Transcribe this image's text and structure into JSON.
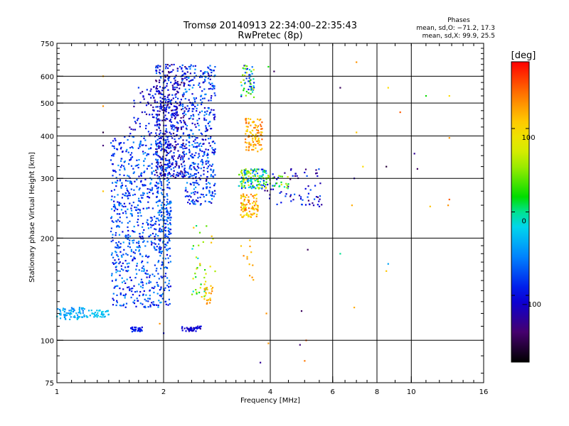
{
  "chart_data": {
    "type": "scatter",
    "title": "Tromsø 20140913 22:34:00–22:35:43",
    "subtitle": "RwPretec (8p)",
    "xlabel": "Frequency [MHz]",
    "ylabel": "Stationary phase Virtual Height [km]",
    "x_scale": "log2",
    "y_scale": "log",
    "xlim": [
      1,
      16
    ],
    "ylim": [
      75,
      750
    ],
    "x_ticks": [
      1,
      2,
      4,
      6,
      8,
      10,
      16
    ],
    "x_tick_labels": [
      "1",
      "2",
      "4",
      "6",
      "8",
      "10",
      "16"
    ],
    "y_ticks": [
      75,
      100,
      200,
      300,
      400,
      500,
      600,
      750
    ],
    "y_tick_labels": [
      "75",
      "100",
      "200",
      "300",
      "400",
      "500",
      "600",
      "750"
    ],
    "grid": true,
    "stats": {
      "heading": "Phases",
      "line_o": "mean, sd,O: −71.2, 17.3",
      "line_x": "mean, sd,X:  99.9, 25.5"
    },
    "colorbar": {
      "label": "[deg]",
      "range": [
        -180,
        180
      ],
      "ticks": [
        100,
        0,
        -100
      ],
      "tick_labels": [
        "100",
        "0",
        "−100"
      ]
    },
    "clusters": [
      {
        "f": [
          1.0,
          1.2
        ],
        "h": [
          115,
          125
        ],
        "phase": [
          -60,
          -20
        ],
        "n": 70
      },
      {
        "f": [
          1.2,
          1.4
        ],
        "h": [
          117,
          123
        ],
        "phase": [
          -40,
          -15
        ],
        "n": 40
      },
      {
        "f": [
          1.42,
          2.1
        ],
        "h": [
          125,
          400
        ],
        "phase": [
          -110,
          -40
        ],
        "n": 800
      },
      {
        "f": [
          1.6,
          2.2
        ],
        "h": [
          400,
          560
        ],
        "phase": [
          -140,
          -80
        ],
        "n": 120
      },
      {
        "f": [
          1.9,
          2.3
        ],
        "h": [
          300,
          650
        ],
        "phase": [
          -150,
          -60
        ],
        "n": 450
      },
      {
        "f": [
          1.9,
          2.1
        ],
        "h": [
          180,
          300
        ],
        "phase": [
          -100,
          -40
        ],
        "n": 80
      },
      {
        "f": [
          2.3,
          2.8
        ],
        "h": [
          250,
          650
        ],
        "phase": [
          -120,
          -40
        ],
        "n": 420
      },
      {
        "f": [
          2.4,
          2.8
        ],
        "h": [
          130,
          220
        ],
        "phase": [
          -20,
          120
        ],
        "n": 40
      },
      {
        "f": [
          2.55,
          2.75
        ],
        "h": [
          128,
          145
        ],
        "phase": [
          100,
          140
        ],
        "n": 22
      },
      {
        "f": [
          1.6,
          1.75
        ],
        "h": [
          106,
          110
        ],
        "phase": [
          -110,
          -80
        ],
        "n": 30
      },
      {
        "f": [
          2.25,
          2.55
        ],
        "h": [
          106,
          110
        ],
        "phase": [
          -130,
          -95
        ],
        "n": 40
      },
      {
        "f": [
          3.3,
          3.6
        ],
        "h": [
          520,
          650
        ],
        "phase": [
          -120,
          80
        ],
        "n": 60
      },
      {
        "f": [
          3.4,
          3.8
        ],
        "h": [
          360,
          450
        ],
        "phase": [
          100,
          150
        ],
        "n": 100
      },
      {
        "f": [
          3.25,
          3.9
        ],
        "h": [
          280,
          320
        ],
        "phase": [
          -90,
          90
        ],
        "n": 140
      },
      {
        "f": [
          3.3,
          3.7
        ],
        "h": [
          230,
          270
        ],
        "phase": [
          80,
          150
        ],
        "n": 90
      },
      {
        "f": [
          3.8,
          5.6
        ],
        "h": [
          250,
          320
        ],
        "phase": [
          -150,
          -60
        ],
        "n": 70
      },
      {
        "f": [
          3.9,
          4.5
        ],
        "h": [
          280,
          310
        ],
        "phase": [
          -30,
          80
        ],
        "n": 25
      },
      {
        "f": [
          3.3,
          3.6
        ],
        "h": [
          150,
          200
        ],
        "phase": [
          110,
          140
        ],
        "n": 12
      }
    ],
    "scattered_points": [
      {
        "f": 1.35,
        "h": 600,
        "phase": 120
      },
      {
        "f": 1.35,
        "h": 490,
        "phase": 130
      },
      {
        "f": 1.35,
        "h": 410,
        "phase": -160
      },
      {
        "f": 1.35,
        "h": 375,
        "phase": -140
      },
      {
        "f": 1.35,
        "h": 275,
        "phase": 110
      },
      {
        "f": 3.9,
        "h": 120,
        "phase": 130
      },
      {
        "f": 3.95,
        "h": 98,
        "phase": 130
      },
      {
        "f": 3.75,
        "h": 86,
        "phase": -130
      },
      {
        "f": 4.9,
        "h": 122,
        "phase": -150
      },
      {
        "f": 5.05,
        "h": 100,
        "phase": 150
      },
      {
        "f": 4.85,
        "h": 97,
        "phase": -140
      },
      {
        "f": 5.0,
        "h": 87,
        "phase": 140
      },
      {
        "f": 5.1,
        "h": 185,
        "phase": -150
      },
      {
        "f": 6.3,
        "h": 555,
        "phase": -150
      },
      {
        "f": 7.0,
        "h": 660,
        "phase": 130
      },
      {
        "f": 7.0,
        "h": 410,
        "phase": 110
      },
      {
        "f": 6.9,
        "h": 300,
        "phase": -120
      },
      {
        "f": 6.8,
        "h": 250,
        "phase": 120
      },
      {
        "f": 7.3,
        "h": 325,
        "phase": 100
      },
      {
        "f": 6.3,
        "h": 180,
        "phase": 0
      },
      {
        "f": 6.9,
        "h": 125,
        "phase": 120
      },
      {
        "f": 8.6,
        "h": 555,
        "phase": 100
      },
      {
        "f": 8.5,
        "h": 325,
        "phase": -160
      },
      {
        "f": 8.6,
        "h": 168,
        "phase": -40
      },
      {
        "f": 8.5,
        "h": 160,
        "phase": 110
      },
      {
        "f": 9.3,
        "h": 470,
        "phase": 150
      },
      {
        "f": 10.2,
        "h": 355,
        "phase": -130
      },
      {
        "f": 10.4,
        "h": 320,
        "phase": -150
      },
      {
        "f": 11.0,
        "h": 525,
        "phase": 20
      },
      {
        "f": 11.3,
        "h": 248,
        "phase": 110
      },
      {
        "f": 12.8,
        "h": 525,
        "phase": 100
      },
      {
        "f": 12.8,
        "h": 395,
        "phase": 130
      },
      {
        "f": 12.8,
        "h": 260,
        "phase": 150
      },
      {
        "f": 12.7,
        "h": 250,
        "phase": 130
      },
      {
        "f": 4.1,
        "h": 620,
        "phase": -150
      },
      {
        "f": 3.95,
        "h": 640,
        "phase": 20
      },
      {
        "f": 4.7,
        "h": 305,
        "phase": -140
      },
      {
        "f": 5.3,
        "h": 250,
        "phase": -120
      },
      {
        "f": 5.5,
        "h": 248,
        "phase": -110
      },
      {
        "f": 2.0,
        "h": 105,
        "phase": -100
      },
      {
        "f": 1.95,
        "h": 112,
        "phase": 130
      }
    ]
  }
}
